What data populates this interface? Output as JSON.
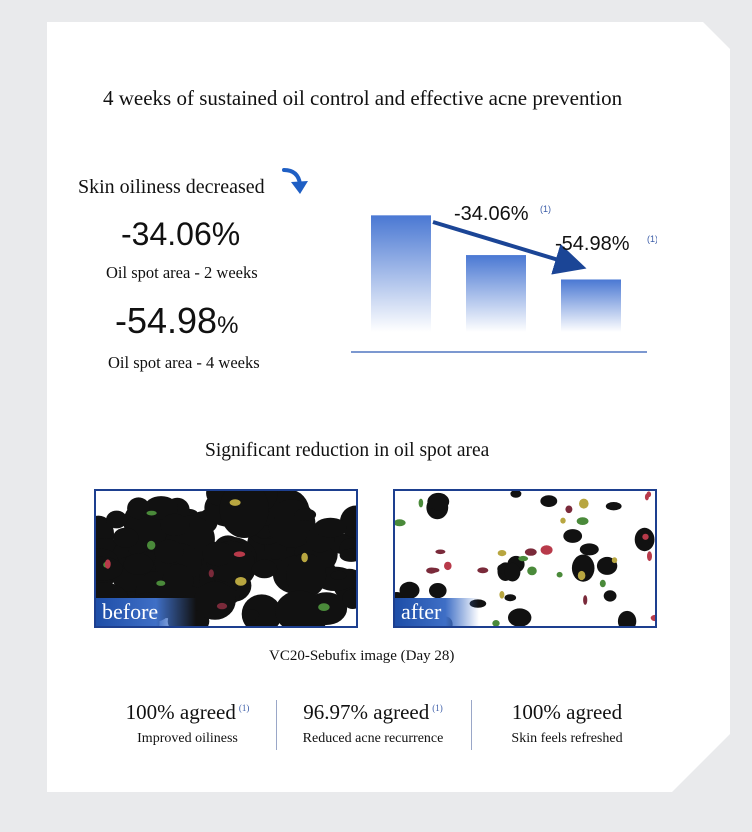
{
  "headline": "4 weeks of sustained oil control and effective acne prevention",
  "oil_section": {
    "label": "Skin oiliness decreased",
    "stats": [
      {
        "value": "-34.06",
        "unit": "%",
        "caption": "Oil spot area - 2 weeks"
      },
      {
        "value": "-54.98",
        "unit": "%",
        "caption": "Oil spot area - 4 weeks"
      }
    ]
  },
  "chart_data": {
    "type": "bar",
    "categories": [
      "",
      "",
      ""
    ],
    "values": [
      100,
      65.94,
      45.02
    ],
    "annotations": [
      {
        "text": "-34.06%",
        "note": "(1)",
        "bar": 1
      },
      {
        "text": "-54.98%",
        "note": "(1)",
        "bar": 2
      }
    ],
    "ylim": [
      0,
      120
    ],
    "colors": {
      "bar_top": "#4a78d3",
      "bar_bottom": "#ffffff",
      "arrow": "#1b4596",
      "axis": "#2f5bb5"
    }
  },
  "section_title": "Significant reduction in oil spot area",
  "photos": [
    {
      "tag": "before",
      "kind": "before"
    },
    {
      "tag": "after",
      "kind": "after"
    }
  ],
  "photo_caption": "VC20-Sebufix image (Day 28)",
  "agreement": [
    {
      "value": "100% agreed",
      "note": "(1)",
      "caption": "Improved oiliness"
    },
    {
      "value": "96.97% agreed",
      "note": "(1)",
      "caption": "Reduced acne recurrence"
    },
    {
      "value": "100% agreed",
      "note": "",
      "caption": "Skin feels refreshed"
    }
  ]
}
